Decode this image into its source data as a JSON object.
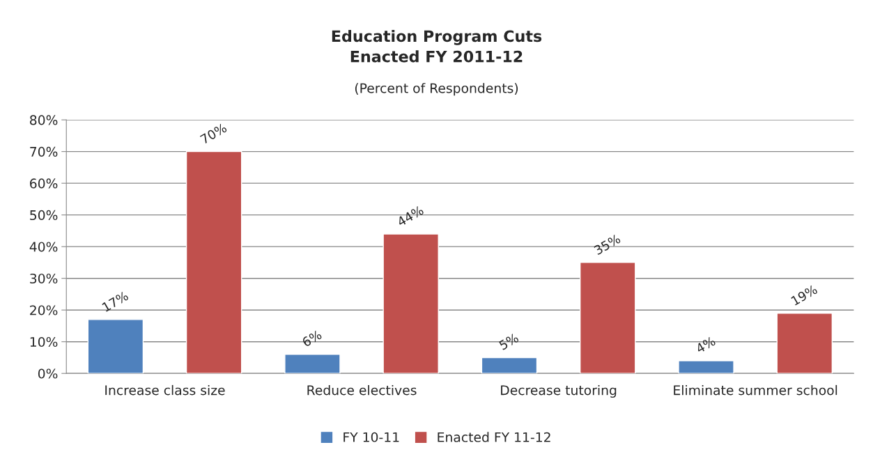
{
  "chart_data": {
    "type": "bar",
    "title": "Education Program Cuts\nEnacted FY 2011-12",
    "subtitle": "(Percent of Respondents)",
    "categories": [
      "Increase class size",
      "Reduce electives",
      "Decrease tutoring",
      "Eliminate summer school"
    ],
    "series": [
      {
        "name": "FY 10-11",
        "color": "#4f81bd",
        "values": [
          17,
          6,
          5,
          4
        ],
        "value_labels": [
          "17%",
          "6%",
          "5%",
          "4%"
        ]
      },
      {
        "name": "Enacted FY 11-12",
        "color": "#c0504d",
        "values": [
          70,
          44,
          35,
          19
        ],
        "value_labels": [
          "70%",
          "44%",
          "35%",
          "19%"
        ]
      }
    ],
    "ylim": [
      0,
      80
    ],
    "yticks": [
      {
        "value": 0,
        "label": "0%"
      },
      {
        "value": 10,
        "label": "10%"
      },
      {
        "value": 20,
        "label": "20%"
      },
      {
        "value": 30,
        "label": "30%"
      },
      {
        "value": 40,
        "label": "40%"
      },
      {
        "value": 50,
        "label": "50%"
      },
      {
        "value": 60,
        "label": "60%"
      },
      {
        "value": 70,
        "label": "70%"
      },
      {
        "value": 80,
        "label": "80%"
      }
    ],
    "grid": "y",
    "legend": "bottom"
  }
}
